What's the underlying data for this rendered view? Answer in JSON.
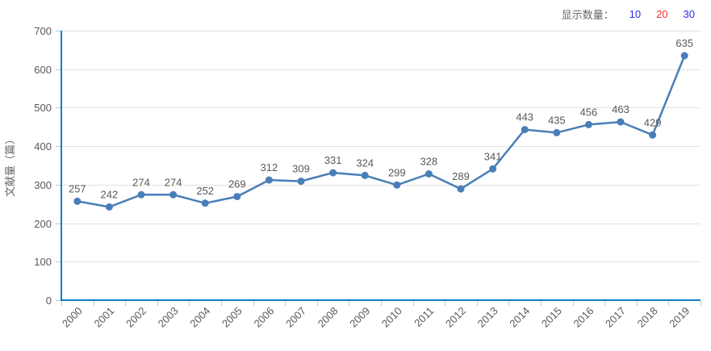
{
  "controls": {
    "label": "显示数量：",
    "options": [
      {
        "label": "10",
        "color": "#2a2af0"
      },
      {
        "label": "20",
        "color": "#fa2b2b"
      },
      {
        "label": "30",
        "color": "#2a2af0"
      }
    ]
  },
  "chart_data": {
    "type": "line",
    "categories": [
      "2000",
      "2001",
      "2002",
      "2003",
      "2004",
      "2005",
      "2006",
      "2007",
      "2008",
      "2009",
      "2010",
      "2011",
      "2012",
      "2013",
      "2014",
      "2015",
      "2016",
      "2017",
      "2018",
      "2019"
    ],
    "values": [
      257,
      242,
      274,
      274,
      252,
      269,
      312,
      309,
      331,
      324,
      299,
      328,
      289,
      341,
      443,
      435,
      456,
      463,
      429,
      635
    ],
    "title": "",
    "xlabel": "",
    "ylabel": "文献量（篇）",
    "ylim": [
      0,
      700
    ],
    "ytick_interval": 100,
    "grid": true,
    "legend_position": "none",
    "point_labels": true,
    "colors": {
      "line": "#4a7eb8",
      "point": "#4a7eb8",
      "axis": "#0e7fc1",
      "tick": "#a9cfe5",
      "grid": "#e2e2e2",
      "label_text": "#595959",
      "axis_title": "#666666"
    }
  }
}
